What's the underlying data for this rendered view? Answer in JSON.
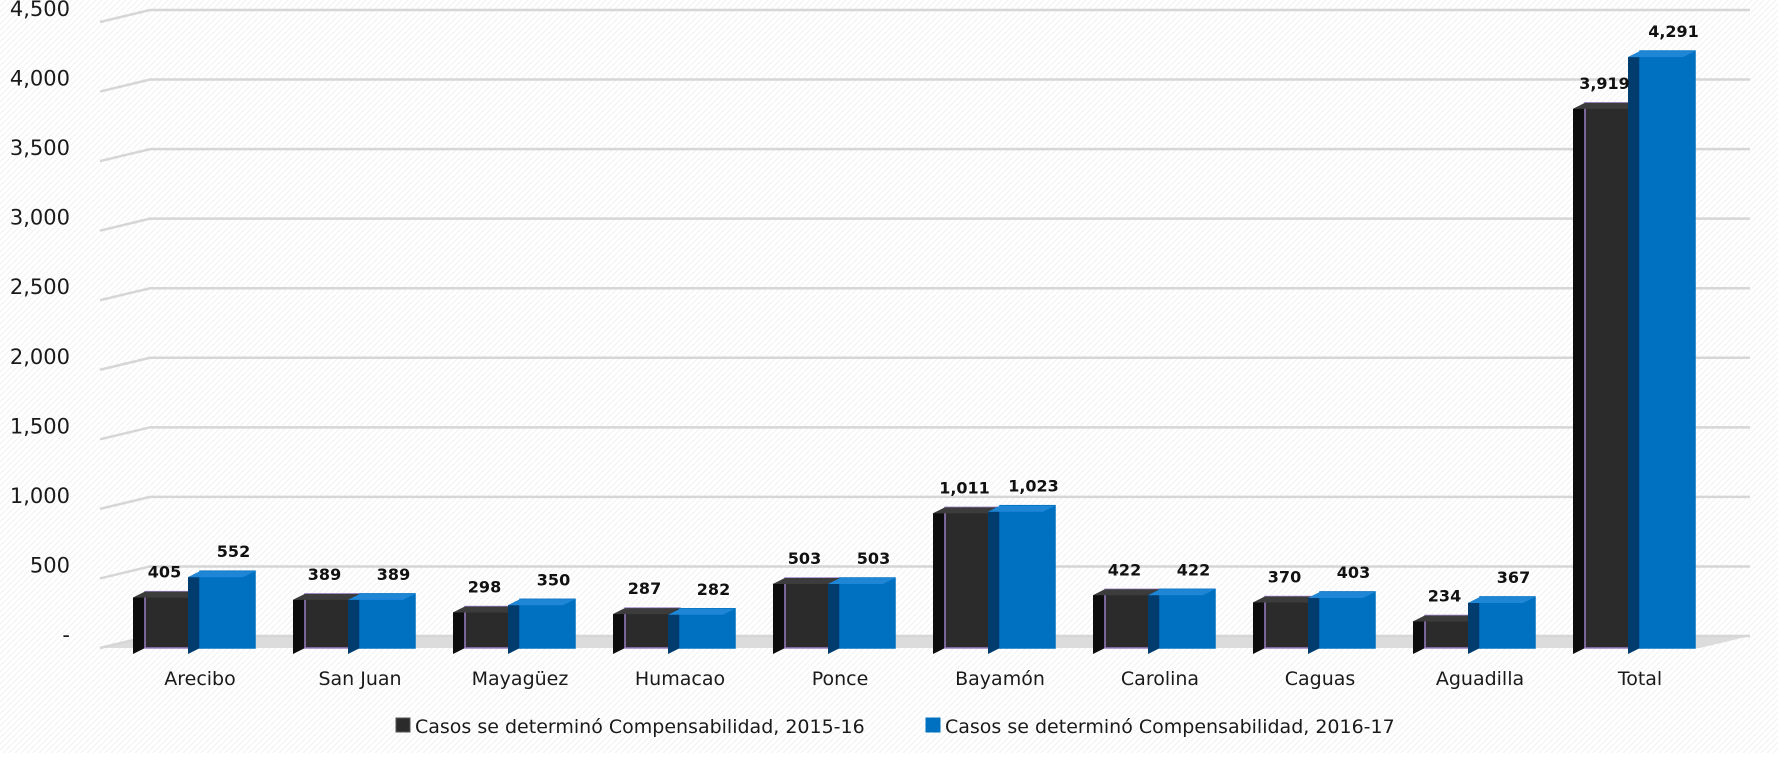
{
  "chart_data": {
    "type": "bar",
    "categories": [
      "Arecibo",
      "San Juan",
      "Mayagüez",
      "Humacao",
      "Ponce",
      "Bayamón",
      "Carolina",
      "Caguas",
      "Aguadilla",
      "Total"
    ],
    "series": [
      {
        "name": "Casos se determinó Compensabilidad, 2015-16",
        "values": [
          405,
          389,
          298,
          287,
          503,
          1011,
          422,
          370,
          234,
          3919
        ],
        "labels": [
          "405",
          "389",
          "298",
          "287",
          "503",
          "1,011",
          "422",
          "370",
          "234",
          "3,919"
        ],
        "color": "#2b2b2b",
        "side_color": "#0d0d0d",
        "top_color": "#3c3c3c",
        "outline_color": "#9a7fc4"
      },
      {
        "name": "Casos se determinó Compensabilidad, 2016-17",
        "values": [
          552,
          389,
          350,
          282,
          503,
          1023,
          422,
          403,
          367,
          4291
        ],
        "labels": [
          "552",
          "389",
          "350",
          "282",
          "503",
          "1,023",
          "422",
          "403",
          "367",
          "4,291"
        ],
        "color": "#0070c0",
        "side_color": "#003d6e",
        "top_color": "#1f86d6",
        "outline_color": "#0070c0"
      }
    ],
    "ylim": [
      0,
      4500
    ],
    "yticks": [
      0,
      500,
      1000,
      1500,
      2000,
      2500,
      3000,
      3500,
      4000,
      4500
    ],
    "ytick_labels": [
      "-",
      "500",
      "1,000",
      "1,500",
      "2,000",
      "2,500",
      "3,000",
      "3,500",
      "4,000",
      "4,500"
    ],
    "grid": true,
    "legend_position": "bottom",
    "title": "",
    "xlabel": "",
    "ylabel": ""
  }
}
